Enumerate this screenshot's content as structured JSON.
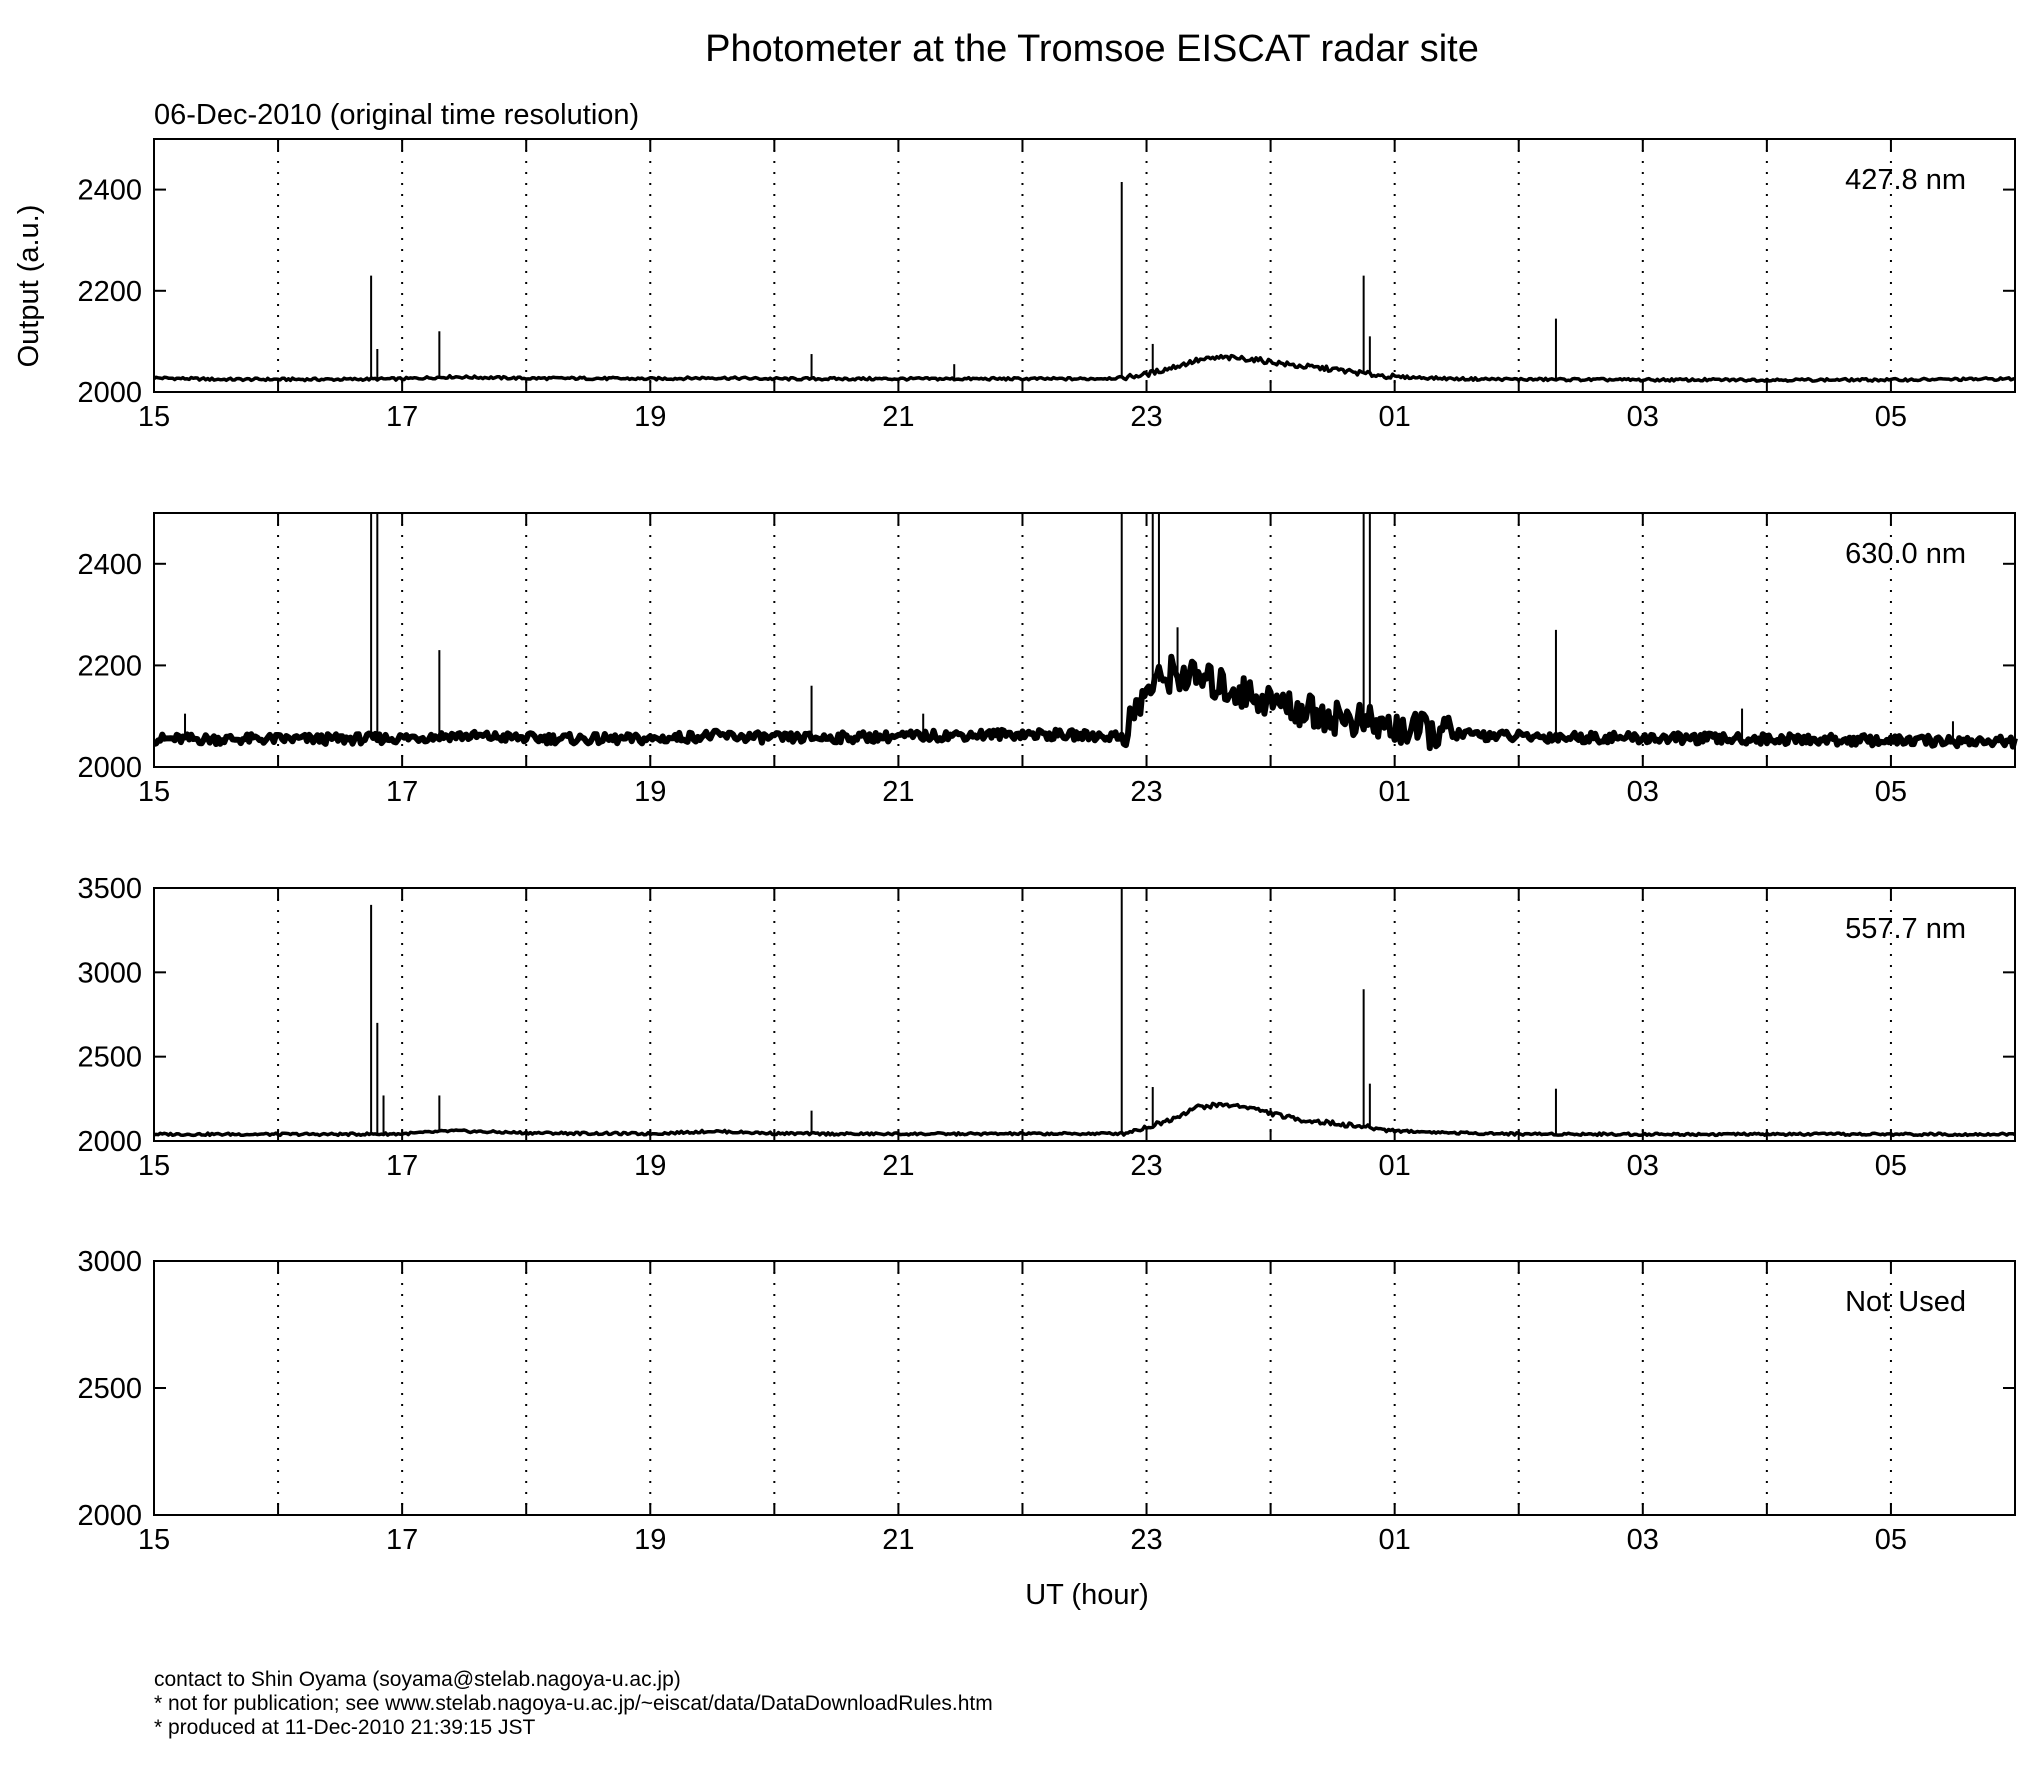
{
  "figure": {
    "title": "Photometer at the Tromsoe EISCAT radar site",
    "subtitle": "06-Dec-2010 (original time resolution)",
    "xlabel": "UT (hour)",
    "ylabel": "Output (a.u.)"
  },
  "footer": {
    "line1": "contact to Shin Oyama (soyama@stelab.nagoya-u.ac.jp)",
    "line2": "* not for publication; see www.stelab.nagoya-u.ac.jp/~eiscat/data/DataDownloadRules.htm",
    "line3": "* produced at 11-Dec-2010 21:39:15 JST"
  },
  "chart_data": [
    {
      "type": "line",
      "label": "427.8 nm",
      "x_tick_labels": [
        "15",
        "17",
        "19",
        "21",
        "23",
        "01",
        "03",
        "05"
      ],
      "xlim": [
        15,
        30
      ],
      "ylim": [
        2000,
        2500
      ],
      "yticks": [
        2000,
        2200,
        2400
      ],
      "grid": "vertical dotted",
      "series": [
        {
          "x": [
            15,
            15.5,
            16,
            16.5,
            17,
            17.4,
            18,
            18.5,
            19,
            19.5,
            20,
            20.5,
            21,
            21.5,
            22,
            22.5,
            22.8,
            23,
            23.2,
            23.4,
            23.6,
            23.8,
            24,
            24.2,
            24.5,
            24.8,
            25,
            25.5,
            26,
            27,
            28,
            29,
            30
          ],
          "y": [
            2028,
            2025,
            2025,
            2025,
            2026,
            2030,
            2027,
            2027,
            2026,
            2028,
            2026,
            2026,
            2026,
            2026,
            2026,
            2026,
            2028,
            2035,
            2048,
            2062,
            2068,
            2066,
            2060,
            2052,
            2045,
            2035,
            2030,
            2026,
            2025,
            2024,
            2024,
            2024,
            2026
          ],
          "spikes": [
            [
              16.75,
              2230
            ],
            [
              16.8,
              2085
            ],
            [
              17.3,
              2120
            ],
            [
              20.3,
              2075
            ],
            [
              21.45,
              2055
            ],
            [
              22.8,
              2415
            ],
            [
              23.05,
              2095
            ],
            [
              24.75,
              2230
            ],
            [
              24.8,
              2110
            ],
            [
              26.3,
              2145
            ]
          ]
        }
      ]
    },
    {
      "type": "line",
      "label": "630.0 nm",
      "x_tick_labels": [
        "15",
        "17",
        "19",
        "21",
        "23",
        "01",
        "03",
        "05"
      ],
      "xlim": [
        15,
        30
      ],
      "ylim": [
        2000,
        2500
      ],
      "yticks": [
        2000,
        2200,
        2400
      ],
      "grid": "vertical dotted",
      "series": [
        {
          "x": [
            15,
            15.5,
            16,
            16.5,
            17,
            17.4,
            18,
            18.5,
            19,
            19.5,
            20,
            20.5,
            21,
            21.5,
            22,
            22.5,
            22.8,
            23,
            23.2,
            23.4,
            23.6,
            23.8,
            24,
            24.2,
            24.5,
            24.8,
            25,
            25.5,
            26,
            27,
            28,
            29,
            30
          ],
          "y": [
            2055,
            2055,
            2055,
            2055,
            2057,
            2062,
            2057,
            2055,
            2055,
            2062,
            2057,
            2058,
            2060,
            2063,
            2065,
            2062,
            2060,
            2150,
            2185,
            2175,
            2160,
            2145,
            2130,
            2115,
            2100,
            2085,
            2075,
            2065,
            2060,
            2057,
            2055,
            2052,
            2050
          ],
          "spikes": [
            [
              15.25,
              2105
            ],
            [
              16.75,
              2500
            ],
            [
              16.8,
              2500
            ],
            [
              17.3,
              2230
            ],
            [
              20.3,
              2160
            ],
            [
              21.2,
              2105
            ],
            [
              22.8,
              2500
            ],
            [
              23.05,
              2500
            ],
            [
              23.1,
              2500
            ],
            [
              23.25,
              2275
            ],
            [
              24.75,
              2500
            ],
            [
              24.8,
              2500
            ],
            [
              26.3,
              2270
            ],
            [
              27.8,
              2115
            ],
            [
              29.5,
              2090
            ]
          ]
        }
      ]
    },
    {
      "type": "line",
      "label": "557.7 nm",
      "x_tick_labels": [
        "15",
        "17",
        "19",
        "21",
        "23",
        "01",
        "03",
        "05"
      ],
      "xlim": [
        15,
        30
      ],
      "ylim": [
        2000,
        3500
      ],
      "yticks": [
        2000,
        2500,
        3000,
        3500
      ],
      "grid": "vertical dotted",
      "series": [
        {
          "x": [
            15,
            15.5,
            16,
            16.5,
            17,
            17.4,
            18,
            18.5,
            19,
            19.5,
            20,
            20.5,
            21,
            21.5,
            22,
            22.5,
            22.8,
            23,
            23.2,
            23.4,
            23.6,
            23.8,
            24,
            24.2,
            24.5,
            24.8,
            25,
            25.5,
            26,
            27,
            28,
            29,
            30
          ],
          "y": [
            2040,
            2040,
            2040,
            2040,
            2042,
            2060,
            2048,
            2045,
            2043,
            2058,
            2045,
            2042,
            2042,
            2042,
            2043,
            2043,
            2045,
            2080,
            2130,
            2200,
            2215,
            2205,
            2165,
            2130,
            2105,
            2080,
            2060,
            2048,
            2042,
            2040,
            2040,
            2040,
            2040
          ],
          "spikes": [
            [
              16.75,
              3400
            ],
            [
              16.8,
              2700
            ],
            [
              16.85,
              2270
            ],
            [
              17.3,
              2270
            ],
            [
              20.3,
              2180
            ],
            [
              22.8,
              3500
            ],
            [
              23.05,
              2320
            ],
            [
              24.75,
              2900
            ],
            [
              24.8,
              2340
            ],
            [
              26.3,
              2310
            ]
          ]
        }
      ]
    },
    {
      "type": "line",
      "label": "Not Used",
      "x_tick_labels": [
        "15",
        "17",
        "19",
        "21",
        "23",
        "01",
        "03",
        "05"
      ],
      "xlim": [
        15,
        30
      ],
      "ylim": [
        2000,
        3000
      ],
      "yticks": [
        2000,
        2500,
        3000
      ],
      "grid": "vertical dotted",
      "series": []
    }
  ]
}
